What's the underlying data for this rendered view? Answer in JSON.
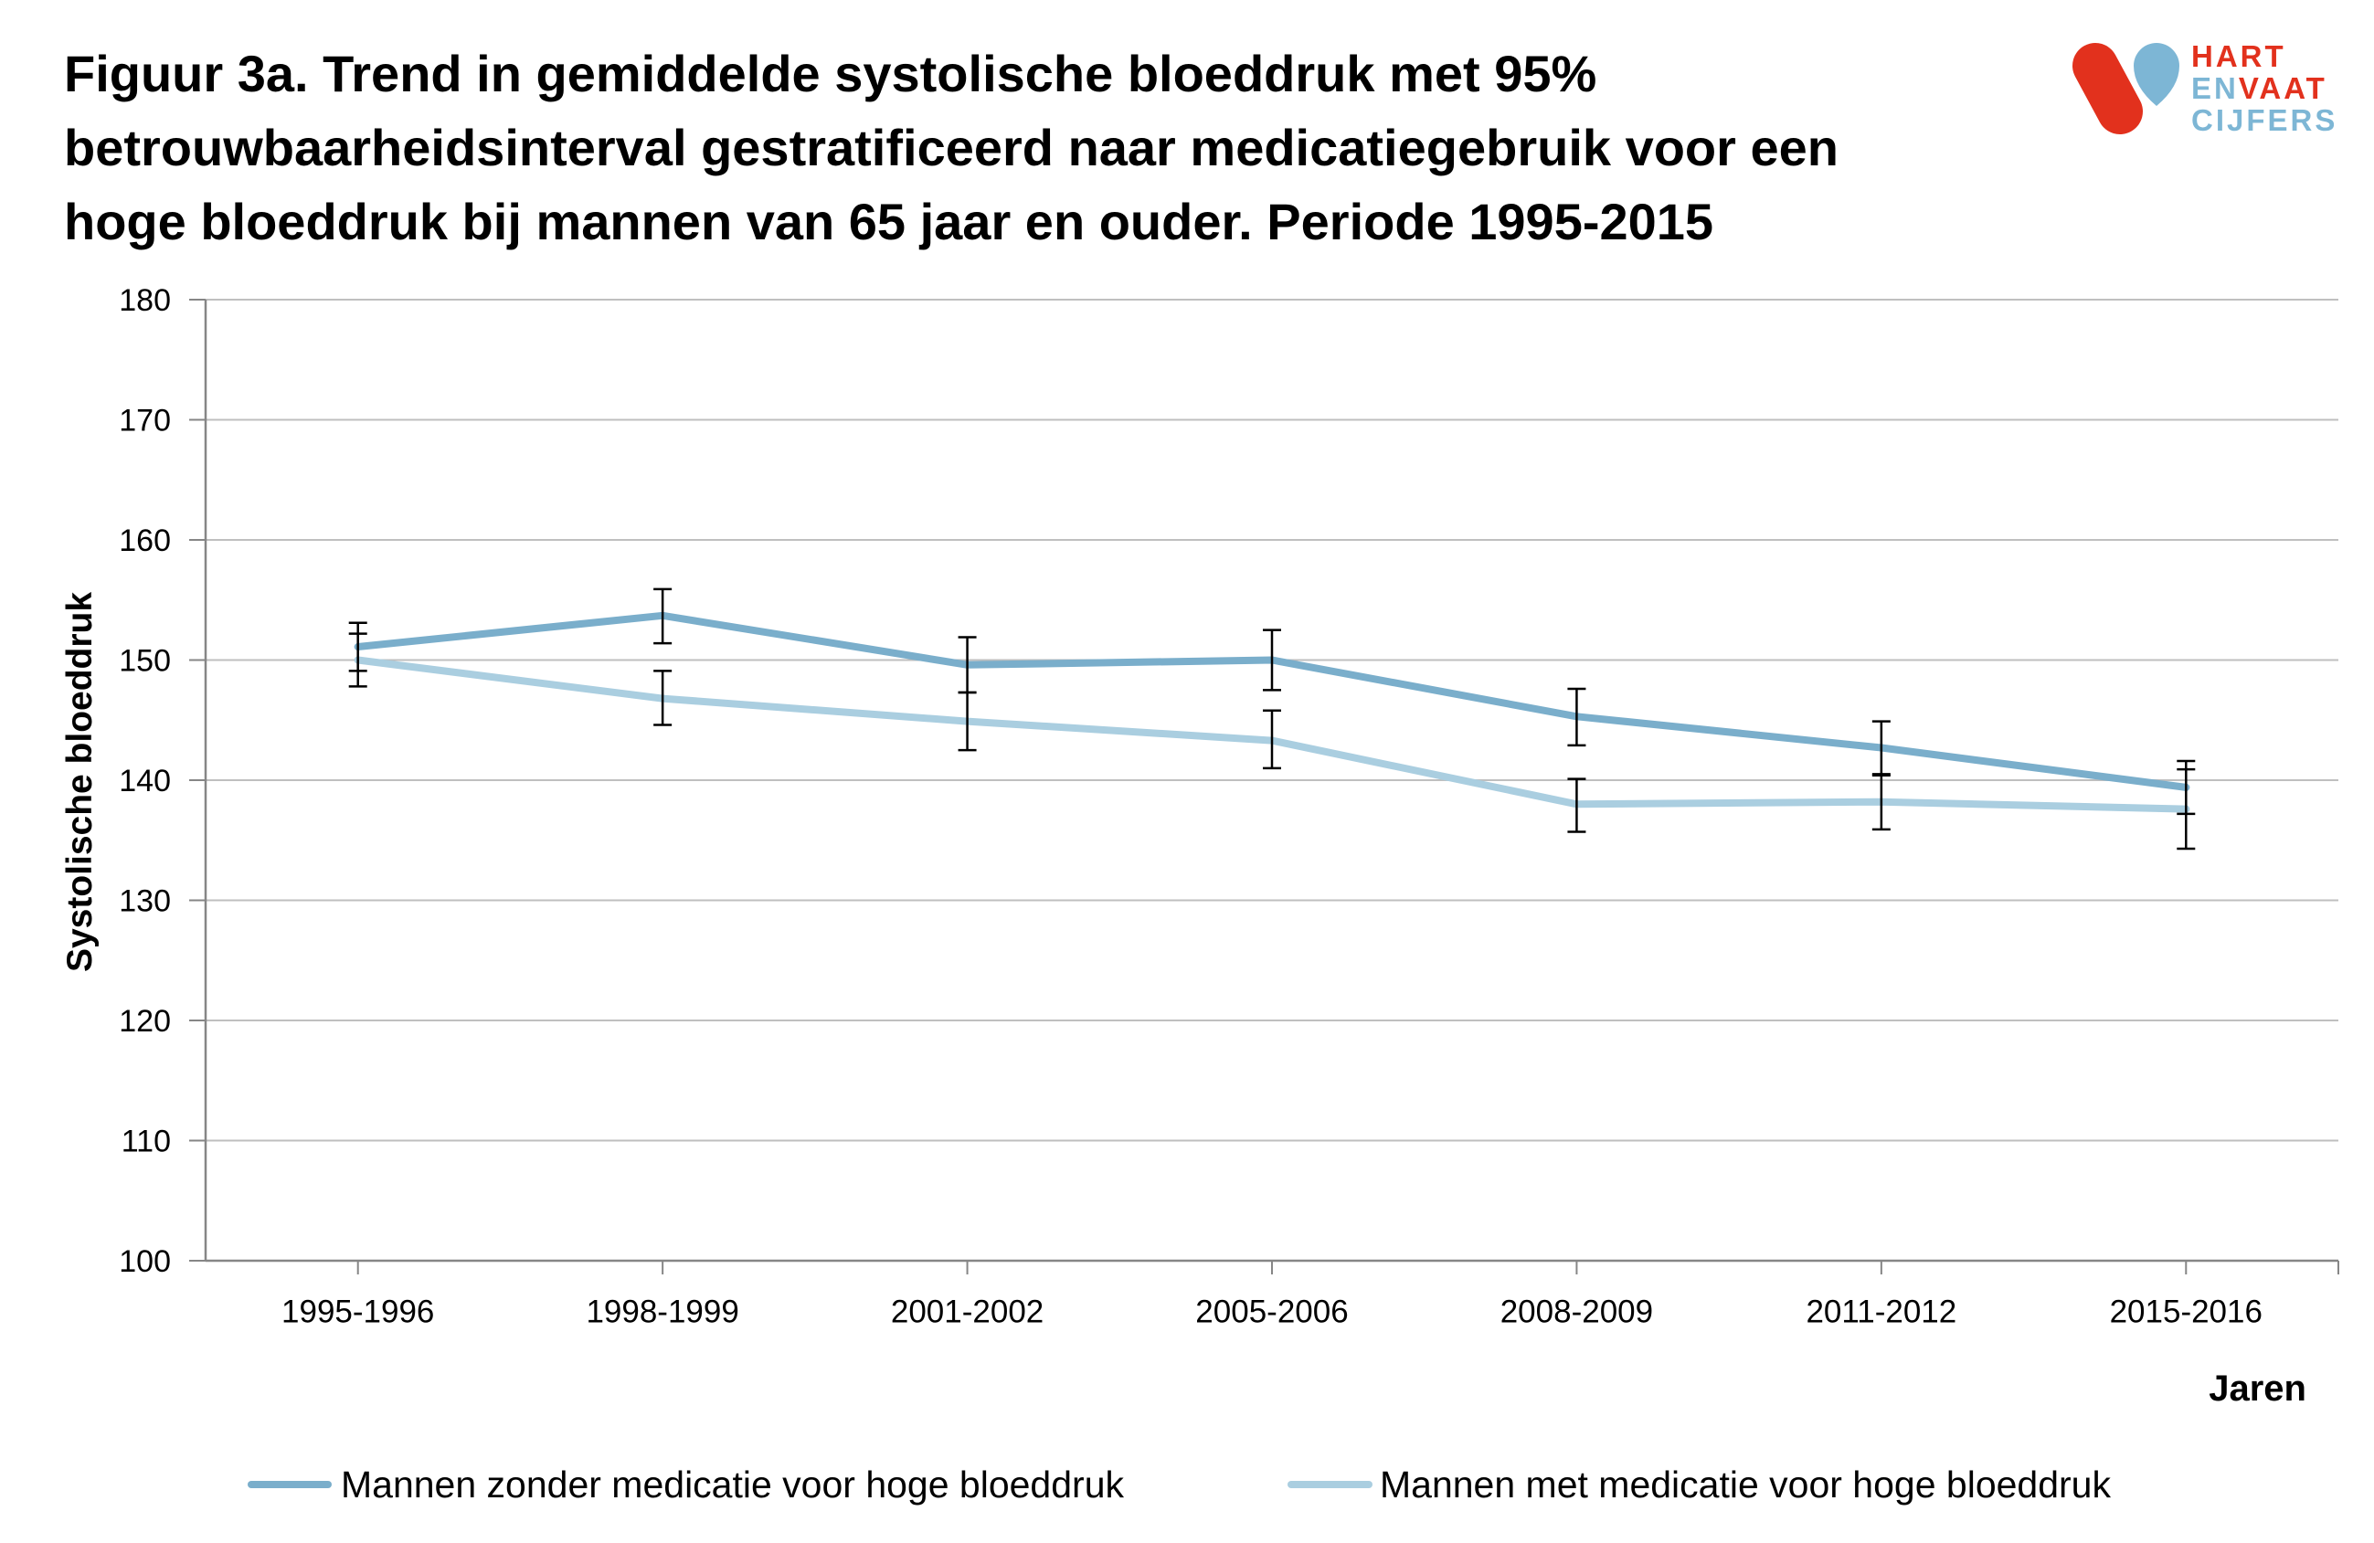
{
  "logo": {
    "word_1": "HART",
    "word_2a": "EN",
    "word_2b": "VAAT",
    "word_3": "CIJFERS",
    "red": "#e2311d",
    "blue": "#7db6d5"
  },
  "chart_data": {
    "type": "line",
    "title_lines": [
      "Figuur 3a. Trend in gemiddelde systolische bloeddruk met 95%",
      "betrouwbaarheidsinterval gestratificeerd naar medicatiegebruik voor een",
      "hoge bloeddruk bij mannen van 65 jaar en ouder. Periode 1995-2015"
    ],
    "xlabel": "Jaren",
    "ylabel": "Systolische bloeddruk",
    "categories": [
      "1995-1996",
      "1998-1999",
      "2001-2002",
      "2005-2006",
      "2008-2009",
      "2011-2012",
      "2015-2016"
    ],
    "ylim": [
      100,
      180
    ],
    "yticks": [
      100,
      110,
      120,
      130,
      140,
      150,
      160,
      170,
      180
    ],
    "grid": true,
    "legend": "bottom",
    "series": [
      {
        "name": "Mannen zonder medicatie voor hoge bloeddruk",
        "color": "#7aaecb",
        "values": [
          151.1,
          153.7,
          149.6,
          150.0,
          145.3,
          142.7,
          139.4
        ],
        "ci_lower": [
          149.1,
          151.4,
          147.3,
          147.5,
          142.9,
          140.4,
          137.2
        ],
        "ci_upper": [
          153.1,
          155.9,
          151.9,
          152.5,
          147.6,
          144.9,
          141.6
        ]
      },
      {
        "name": "Mannen met medicatie voor hoge bloeddruk",
        "color": "#aacee0",
        "values": [
          150.0,
          146.8,
          144.9,
          143.3,
          138.0,
          138.2,
          137.6
        ],
        "ci_lower": [
          147.8,
          144.6,
          142.5,
          141.0,
          135.7,
          135.9,
          134.3
        ],
        "ci_upper": [
          152.2,
          149.1,
          147.3,
          145.8,
          140.1,
          140.5,
          140.9
        ]
      }
    ]
  }
}
